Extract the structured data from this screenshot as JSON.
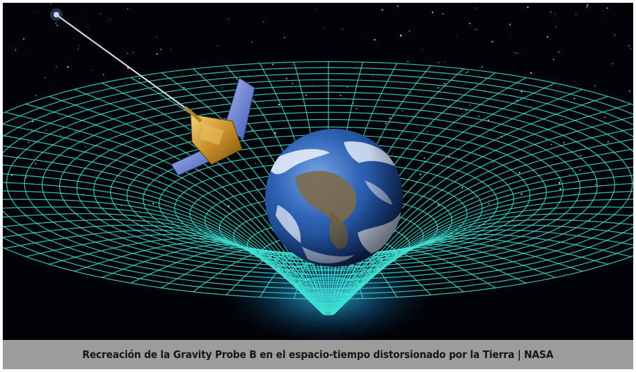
{
  "image": {
    "subject": "gravity-probe-b-spacetime-illustration",
    "colors": {
      "space": "#020308",
      "grid": "#3fe0d4",
      "grid_glow": "#2fc8ff",
      "ocean": "#2a5fb0",
      "cloud": "#eef3fb",
      "satellite_gold": "#d9a436",
      "solar_panel": "#6f88d8",
      "caption_bg": "#c8c8c8",
      "caption_text": "#161616"
    }
  },
  "caption": {
    "text": "Recreación de la Gravity Probe B en el espacio-tiempo distorsionado por la Tierra | NASA"
  }
}
